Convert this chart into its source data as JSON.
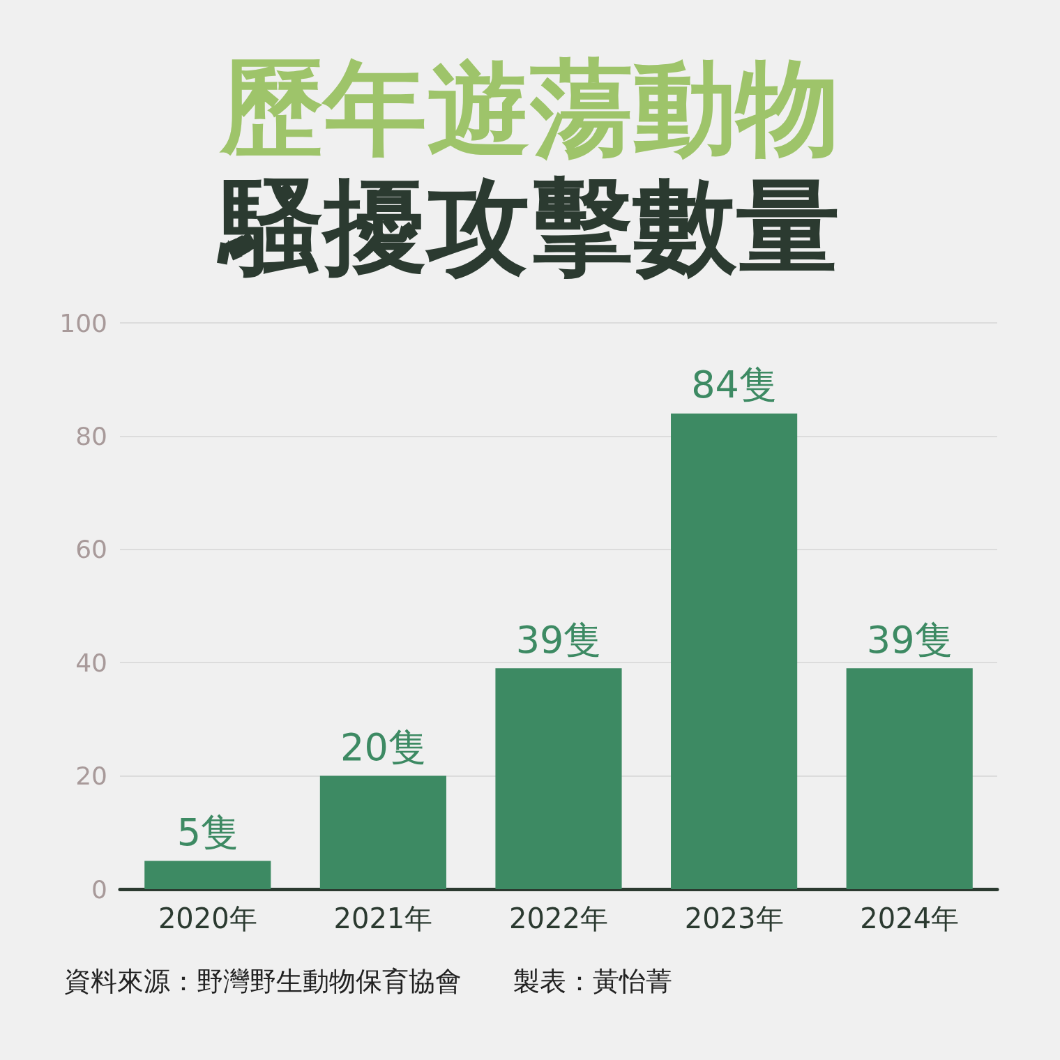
{
  "chart_data": {
    "type": "bar",
    "title": "歷年遊蕩動物",
    "subtitle": "騷擾攻擊數量",
    "categories": [
      "2020年",
      "2021年",
      "2022年",
      "2023年",
      "2024年"
    ],
    "values": [
      5,
      20,
      39,
      84,
      39
    ],
    "color": "#3d8a63",
    "value_labels": [
      "5隻",
      "20隻",
      "39隻",
      "84隻",
      "39隻"
    ],
    "ylim": [
      0,
      100
    ],
    "yticks": [
      0,
      20,
      40,
      60,
      80,
      100
    ],
    "grid": "y",
    "annotations": [
      "資料來源：野灣野生動物保育協會",
      "製表：黃怡菁"
    ]
  }
}
